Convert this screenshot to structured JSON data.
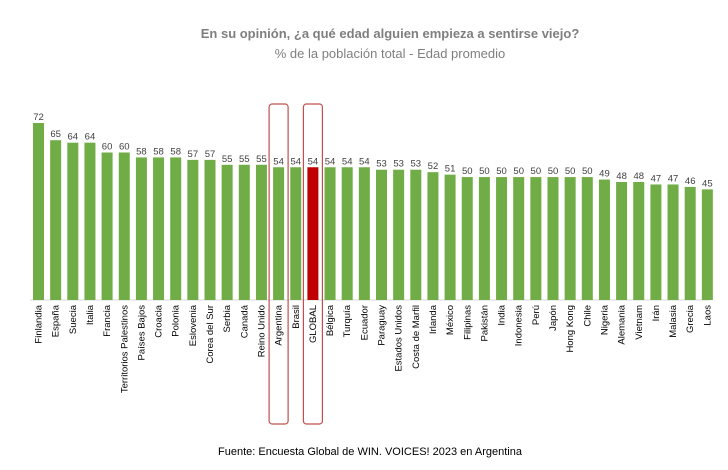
{
  "title": "En su opinión, ¿a qué edad alguien empieza a sentirse viejo?",
  "subtitle": "% de la población total - Edad promedio",
  "source": "Fuente: Encuesta Global de WIN. VOICES! 2023 en Argentina",
  "colors": {
    "bar": "#70ad47",
    "highlight_bar": "#c00000",
    "outline": "#c0504d"
  },
  "chart_data": {
    "type": "bar",
    "title": "En su opinión, ¿a qué edad alguien empieza a sentirse viejo?",
    "subtitle": "% de la población total - Edad promedio",
    "categories": [
      "Finlandia",
      "España",
      "Suecia",
      "Italia",
      "Francia",
      "Territorios Palestinos",
      "Países Bajos",
      "Croacia",
      "Polonia",
      "Eslovenia",
      "Corea del Sur",
      "Serbia",
      "Canadá",
      "Reino Unido",
      "Argentina",
      "Brasil",
      "GLOBAL",
      "Bélgica",
      "Turquía",
      "Ecuador",
      "Paraguay",
      "Estados Unidos",
      "Costa de Marfil",
      "Irlanda",
      "México",
      "Filipinas",
      "Pakistán",
      "India",
      "Indonesia",
      "Perú",
      "Japón",
      "Hong Kong",
      "Chile",
      "Nigeria",
      "Alemania",
      "Vietnam",
      "Irán",
      "Malasia",
      "Grecia",
      "Laos"
    ],
    "values": [
      72,
      65,
      64,
      64,
      60,
      60,
      58,
      58,
      58,
      57,
      57,
      55,
      55,
      55,
      54,
      54,
      54,
      54,
      54,
      54,
      53,
      53,
      53,
      52,
      51,
      50,
      50,
      50,
      50,
      50,
      50,
      50,
      50,
      49,
      48,
      48,
      47,
      47,
      46,
      45
    ],
    "highlight": [
      "GLOBAL"
    ],
    "outlined": [
      "Argentina",
      "GLOBAL"
    ],
    "ylim": [
      0,
      72
    ],
    "grid": false,
    "legend": "none"
  }
}
